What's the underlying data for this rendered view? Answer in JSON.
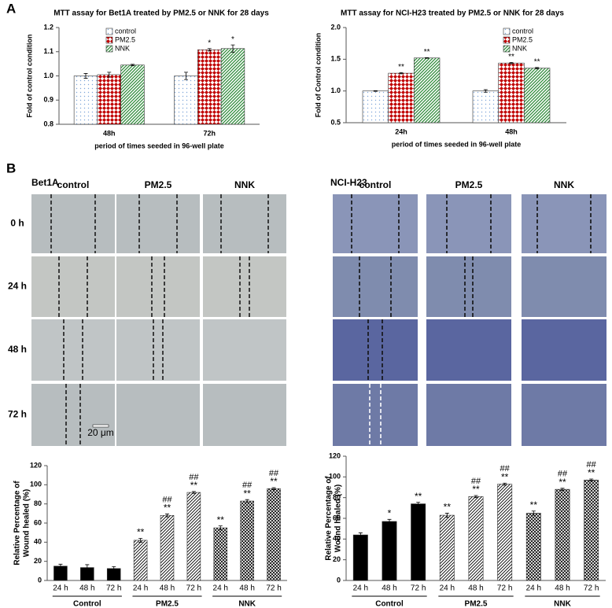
{
  "panel_labels": [
    "A",
    "B"
  ],
  "chart_data": [
    {
      "type": "bar",
      "group_by": "category",
      "legend": true,
      "title": "MTT assay for Bet1A treated by PM2.5 or NNK for 28 days",
      "ylabel": "Fold of control condition",
      "xlabel": "period of times seeded in 96-well plate",
      "categories": [
        "48h",
        "72h"
      ],
      "ylim": [
        0.8,
        1.2
      ],
      "yticks": [
        0.8,
        0.9,
        {
          "value": 1,
          "label": "1.0"
        },
        1.1,
        1.2
      ],
      "series": [
        {
          "name": "control",
          "color": "#7fa7d9",
          "pattern": "dots",
          "values": [
            1.0,
            1.0
          ],
          "errors": [
            0.01,
            0.015
          ],
          "significance": [
            null,
            null
          ]
        },
        {
          "name": "PM2.5",
          "color": "#c00000",
          "pattern": "checker",
          "values": [
            1.005,
            1.108
          ],
          "errors": [
            0.01,
            0.005
          ],
          "significance": [
            null,
            "*"
          ]
        },
        {
          "name": "NNK",
          "color": "#2e8b3a",
          "pattern": "stripes",
          "values": [
            1.045,
            1.113
          ],
          "errors": [
            0.003,
            0.015
          ],
          "significance": [
            null,
            "*"
          ]
        }
      ]
    },
    {
      "type": "bar",
      "group_by": "category",
      "legend": true,
      "title": "MTT assay for NCI-H23 treated by PM2.5 or NNK for 28 days",
      "ylabel": "Fold of Control condition",
      "xlabel": "period of times seeded in 96-well plate",
      "categories": [
        "24h",
        "48h"
      ],
      "ylim": [
        0.5,
        2.0
      ],
      "yticks": [
        0.5,
        {
          "value": 1,
          "label": "1.0"
        },
        1.5,
        {
          "value": 2,
          "label": "2.0"
        }
      ],
      "series": [
        {
          "name": "control",
          "color": "#7fa7d9",
          "pattern": "dots",
          "values": [
            1.0,
            1.0
          ],
          "errors": [
            0.005,
            0.02
          ],
          "significance": [
            null,
            null
          ]
        },
        {
          "name": "PM2.5",
          "color": "#c00000",
          "pattern": "checker",
          "values": [
            1.28,
            1.44
          ],
          "errors": [
            0.01,
            0.01
          ],
          "significance": [
            "**",
            "**"
          ]
        },
        {
          "name": "NNK",
          "color": "#2e8b3a",
          "pattern": "stripes",
          "values": [
            1.52,
            1.36
          ],
          "errors": [
            0.005,
            0.01
          ],
          "significance": [
            "**",
            "**"
          ]
        }
      ]
    },
    {
      "type": "bar",
      "group_by": "series",
      "legend": false,
      "ylabel": [
        "Relative Percentage of",
        "Wound healed (%)"
      ],
      "categories": [
        "24 h",
        "48 h",
        "72 h"
      ],
      "ylim": [
        0,
        120
      ],
      "yticks": [
        0,
        20,
        40,
        60,
        80,
        100,
        120
      ],
      "series": [
        {
          "name": "Control",
          "color": "#000000",
          "pattern": "solid",
          "values": [
            15,
            13.5,
            12.5
          ],
          "errors": [
            2,
            3,
            2
          ],
          "significance": [
            null,
            null,
            null
          ],
          "significance2": [
            null,
            null,
            null
          ]
        },
        {
          "name": "PM2.5",
          "color": "#000000",
          "pattern": "hatch",
          "values": [
            42,
            68,
            92
          ],
          "errors": [
            2,
            1.5,
            1
          ],
          "significance": [
            "**",
            "**",
            "**"
          ],
          "significance2": [
            null,
            "##",
            "##"
          ]
        },
        {
          "name": "NNK",
          "color": "#000000",
          "pattern": "cross",
          "values": [
            55,
            83,
            96
          ],
          "errors": [
            2,
            1.5,
            1
          ],
          "significance": [
            "**",
            "**",
            "**"
          ],
          "significance2": [
            null,
            "##",
            "##"
          ]
        }
      ]
    },
    {
      "type": "bar",
      "group_by": "series",
      "legend": false,
      "ylabel": [
        "Relative Percentage of",
        "Wound healed (%)"
      ],
      "categories": [
        "24 h",
        "48 h",
        "72 h"
      ],
      "ylim": [
        0,
        120
      ],
      "yticks": [
        0,
        20,
        40,
        60,
        80,
        100,
        120
      ],
      "series": [
        {
          "name": "Control",
          "color": "#000000",
          "pattern": "solid",
          "values": [
            44,
            57,
            74
          ],
          "errors": [
            2,
            2,
            1.5
          ],
          "significance": [
            null,
            "*",
            "**"
          ],
          "significance2": [
            null,
            null,
            null
          ]
        },
        {
          "name": "PM2.5",
          "color": "#000000",
          "pattern": "hatch",
          "values": [
            63,
            81,
            93
          ],
          "errors": [
            2,
            1,
            1
          ],
          "significance": [
            "**",
            "**",
            "**"
          ],
          "significance2": [
            null,
            "##",
            "##"
          ]
        },
        {
          "name": "NNK",
          "color": "#000000",
          "pattern": "cross",
          "values": [
            65,
            88,
            97
          ],
          "errors": [
            2,
            1,
            1
          ],
          "significance": [
            "**",
            "**",
            "**"
          ],
          "significance2": [
            null,
            "##",
            "##"
          ]
        }
      ]
    }
  ],
  "image_grids": [
    {
      "title": "Bet1A",
      "columns": [
        "control",
        "PM2.5",
        "NNK"
      ],
      "rows": [
        "0 h",
        "24 h",
        "48 h",
        "72 h"
      ],
      "scale_bar": "20 μm"
    },
    {
      "title": "NCI-H23",
      "columns": [
        "control",
        "PM2.5",
        "NNK"
      ]
    }
  ]
}
